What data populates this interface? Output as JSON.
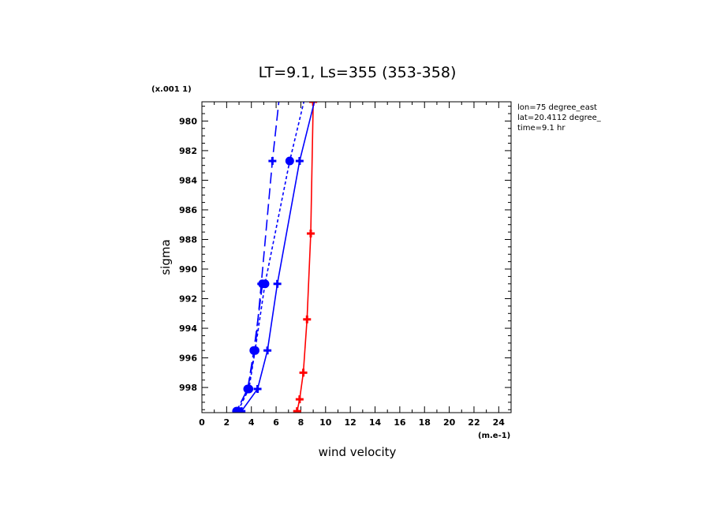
{
  "chart_data": {
    "type": "line",
    "title": "LT=9.1, Ls=355 (353-358)",
    "xlabel": "wind velocity",
    "ylabel": "sigma",
    "x_unit": "(m.e-1)",
    "y_unit": "(x.001 1)",
    "xlim": [
      0,
      25
    ],
    "ylim": [
      999.7,
      978.7
    ],
    "x_ticks": [
      "0",
      "2",
      "4",
      "6",
      "8",
      "10",
      "12",
      "14",
      "16",
      "18",
      "20",
      "22",
      "24"
    ],
    "y_ticks": [
      "980",
      "982",
      "984",
      "986",
      "988",
      "990",
      "992",
      "994",
      "996",
      "998"
    ],
    "info": [
      "lon=75 degree_east",
      "lat=20.4112 degree_",
      "time=9.1 hr"
    ],
    "series": [
      {
        "color": "#ff0000",
        "dash": "solid",
        "marker": "plus",
        "points": [
          [
            9.0,
            978.7
          ],
          [
            8.8,
            987.6
          ],
          [
            8.5,
            993.4
          ],
          [
            8.2,
            997.0
          ],
          [
            7.9,
            998.8
          ],
          [
            7.7,
            999.6
          ]
        ]
      },
      {
        "color": "#0000ff",
        "dash": "solid",
        "marker": "plus",
        "points": [
          [
            10.2,
            975.0
          ],
          [
            7.9,
            982.7
          ],
          [
            6.1,
            991.0
          ],
          [
            5.3,
            995.5
          ],
          [
            4.5,
            998.1
          ],
          [
            3.2,
            999.6
          ]
        ]
      },
      {
        "color": "#0000ff",
        "dash": "short",
        "marker": "circle",
        "points": [
          [
            9.3,
            975.0
          ],
          [
            7.1,
            982.7
          ],
          [
            5.1,
            991.0
          ],
          [
            4.3,
            995.5
          ],
          [
            3.8,
            998.1
          ],
          [
            2.9,
            999.6
          ]
        ]
      },
      {
        "color": "#0000ff",
        "dash": "long",
        "marker": "plus",
        "points": [
          [
            6.7,
            975.0
          ],
          [
            5.7,
            982.7
          ],
          [
            4.8,
            991.0
          ],
          [
            4.3,
            995.5
          ],
          [
            3.7,
            998.1
          ],
          [
            2.8,
            999.6
          ]
        ]
      },
      {
        "color": "#0000ff",
        "dash": "long",
        "marker": "circle",
        "points": [
          [
            4.9,
            991.0
          ],
          [
            4.2,
            995.5
          ],
          [
            3.7,
            998.1
          ],
          [
            2.8,
            999.6
          ]
        ]
      }
    ]
  }
}
